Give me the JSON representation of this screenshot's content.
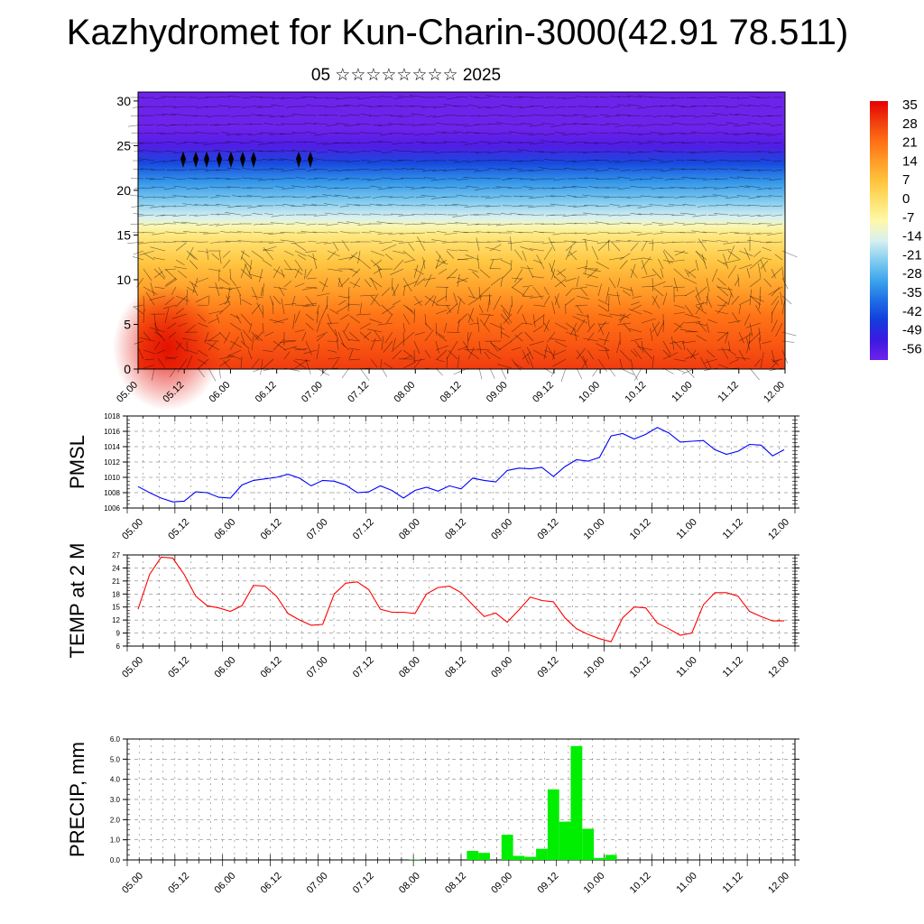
{
  "page": {
    "title": "Kazhydromet for Kun-Charin-3000(42.91 78.511)",
    "subtitle": "05 ☆☆☆☆☆☆☆☆ 2025"
  },
  "chart_data": [
    {
      "type": "heatmap",
      "title": "",
      "x_tick_labels": [
        "05.00",
        "05.12",
        "06.00",
        "06.12",
        "07.00",
        "07.12",
        "08.00",
        "08.12",
        "09.00",
        "09.12",
        "10.00",
        "10.12",
        "11.00",
        "11.12",
        "12.00"
      ],
      "y_ticks": [
        0,
        5,
        10,
        15,
        20,
        25,
        30
      ],
      "ylim": [
        0,
        31
      ],
      "xlim": [
        0,
        84
      ],
      "x_unit_hours": true,
      "colorbar": {
        "labels": [
          "35",
          "28",
          "21",
          "14",
          "7",
          "0",
          "-7",
          "-14",
          "-21",
          "-28",
          "-35",
          "-42",
          "-49",
          "-56"
        ]
      },
      "field_by_level": [
        [
          0,
          28
        ],
        [
          3,
          24
        ],
        [
          6,
          20
        ],
        [
          9,
          13
        ],
        [
          12,
          6
        ],
        [
          15,
          -2
        ],
        [
          16,
          -8
        ],
        [
          17,
          -14
        ],
        [
          19,
          -22
        ],
        [
          21,
          -30
        ],
        [
          23,
          -40
        ],
        [
          25,
          -52
        ],
        [
          27,
          -58
        ],
        [
          31,
          -60
        ]
      ],
      "notes": "temperature color field with wind barbs overlay"
    },
    {
      "type": "line",
      "ylabel": "PMSL",
      "ylim": [
        1006,
        1018
      ],
      "y_ticks": [
        1006,
        1008,
        1010,
        1012,
        1014,
        1016,
        1018
      ],
      "x_tick_labels": [
        "05.00",
        "05.12",
        "06.00",
        "06.12",
        "07.00",
        "07.12",
        "08.00",
        "08.12",
        "09.00",
        "09.12",
        "10.00",
        "10.12",
        "11.00",
        "11.12",
        "12.00"
      ],
      "x_step_hours": 3,
      "series": [
        {
          "color": "#0000ff",
          "values": [
            1008.8,
            1008.0,
            1007.3,
            1006.8,
            1006.9,
            1008.1,
            1008.0,
            1007.4,
            1007.3,
            1009.0,
            1009.6,
            1009.8,
            1010.0,
            1010.4,
            1009.9,
            1008.9,
            1009.6,
            1009.5,
            1009.0,
            1008.0,
            1008.1,
            1008.9,
            1008.3,
            1007.3,
            1008.3,
            1008.7,
            1008.2,
            1008.9,
            1008.5,
            1009.9,
            1009.6,
            1009.4,
            1010.9,
            1011.2,
            1011.1,
            1011.3,
            1010.1,
            1011.4,
            1012.3,
            1012.1,
            1012.6,
            1015.4,
            1015.7,
            1015.0,
            1015.6,
            1016.5,
            1015.8,
            1014.6,
            1014.7,
            1014.8,
            1013.6,
            1013.0,
            1013.4,
            1014.3,
            1014.2,
            1012.8,
            1013.6
          ]
        }
      ]
    },
    {
      "type": "line",
      "ylabel": "TEMP at 2 M",
      "ylim": [
        6,
        27
      ],
      "y_ticks": [
        6,
        9,
        12,
        15,
        18,
        21,
        24,
        27
      ],
      "x_tick_labels": [
        "05.00",
        "05.12",
        "06.00",
        "06.12",
        "07.00",
        "07.12",
        "08.00",
        "08.12",
        "09.00",
        "09.12",
        "10.00",
        "10.12",
        "11.00",
        "11.12",
        "12.00"
      ],
      "x_step_hours": 3,
      "series": [
        {
          "color": "#ff0000",
          "values": [
            14.5,
            22.5,
            26.5,
            26.3,
            22.5,
            17.5,
            15.3,
            14.8,
            14.0,
            15.3,
            20.0,
            19.8,
            17.5,
            13.5,
            12.0,
            10.8,
            11.0,
            18.0,
            20.5,
            20.8,
            19.0,
            14.5,
            13.8,
            13.8,
            13.5,
            18.0,
            19.5,
            19.8,
            18.3,
            15.5,
            12.8,
            13.6,
            11.5,
            14.3,
            17.3,
            16.5,
            16.2,
            12.5,
            10.0,
            8.7,
            7.7,
            7.0,
            12.5,
            15.0,
            14.8,
            11.3,
            10.0,
            8.5,
            9.0,
            15.5,
            18.3,
            18.3,
            17.5,
            14.0,
            12.8,
            11.8,
            11.8
          ]
        }
      ]
    },
    {
      "type": "bar",
      "ylabel": "PRECIP, mm",
      "ylim": [
        0,
        6
      ],
      "y_tick_labels": [
        "0.0",
        "1.0",
        "2.0",
        "3.0",
        "4.0",
        "5.0",
        "6.0"
      ],
      "x_tick_labels": [
        "05.00",
        "05.12",
        "06.00",
        "06.12",
        "07.00",
        "07.12",
        "08.00",
        "08.12",
        "09.00",
        "09.12",
        "10.00",
        "10.12",
        "11.00",
        "11.12",
        "12.00"
      ],
      "bar_color": "#00ee00",
      "bars": [
        {
          "hour": 72,
          "value": 0.02
        },
        {
          "hour": 87,
          "value": 0.45
        },
        {
          "hour": 90,
          "value": 0.35
        },
        {
          "hour": 96,
          "value": 1.25
        },
        {
          "hour": 99,
          "value": 0.2
        },
        {
          "hour": 102,
          "value": 0.15
        },
        {
          "hour": 105,
          "value": 0.55
        },
        {
          "hour": 108,
          "value": 3.5
        },
        {
          "hour": 111,
          "value": 1.9
        },
        {
          "hour": 114,
          "value": 5.65
        },
        {
          "hour": 117,
          "value": 1.55
        },
        {
          "hour": 120,
          "value": 0.1
        },
        {
          "hour": 123,
          "value": 0.25
        }
      ]
    }
  ]
}
